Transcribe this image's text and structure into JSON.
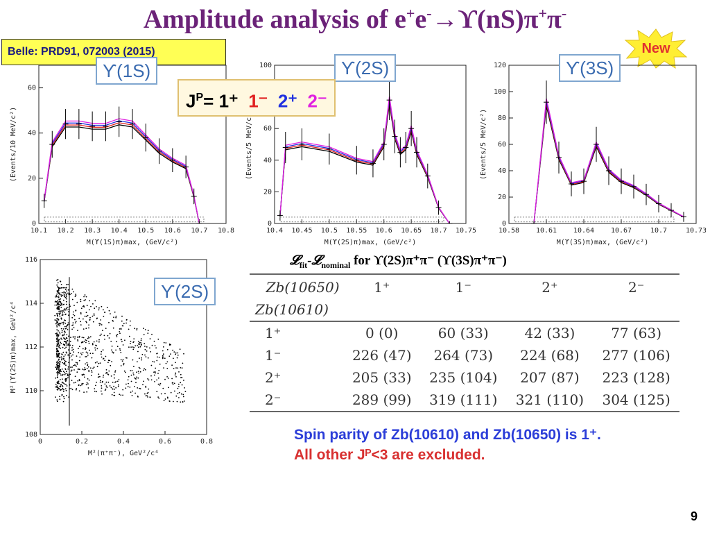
{
  "title": {
    "main": "Amplitude analysis of e",
    "plus": "+",
    "e": "e",
    "minus": "-",
    "arrow": "→ϒ(nS)π",
    "pi_plus": "+",
    "pi": "π",
    "pi_minus": "-"
  },
  "citation": "Belle: PRD91, 072003 (2015)",
  "new_badge": "New",
  "legend_box": {
    "jp_label": "J",
    "jp_sup": "P",
    "equals": "= ",
    "items": [
      {
        "label": "1⁺",
        "color": "#000000"
      },
      {
        "label": "1⁻",
        "color": "#e02020"
      },
      {
        "label": "2⁺",
        "color": "#2030e0"
      },
      {
        "label": "2⁻",
        "color": "#e020e0"
      }
    ]
  },
  "chart_data": [
    {
      "type": "line",
      "channel": "ϒ(1S)",
      "xlabel": "M(ϒ(1S)π)max, (GeV/c²)",
      "ylabel": "(Events/10 MeV/c²)",
      "xlim": [
        10.1,
        10.8
      ],
      "ylim": [
        0,
        70
      ],
      "xticks": [
        "10.1",
        "10.2",
        "10.3",
        "10.4",
        "10.5",
        "10.6",
        "10.7",
        "10.8"
      ],
      "yticks": [
        "0",
        "20",
        "40",
        "60"
      ],
      "x": [
        10.12,
        10.15,
        10.2,
        10.25,
        10.3,
        10.35,
        10.4,
        10.45,
        10.5,
        10.55,
        10.6,
        10.65,
        10.68,
        10.7
      ],
      "y": [
        10,
        35,
        44,
        44,
        43,
        43,
        45,
        44,
        38,
        32,
        28,
        25,
        12,
        0
      ]
    },
    {
      "type": "line",
      "channel": "ϒ(2S)",
      "xlabel": "M(ϒ(2S)π)max, (GeV/c²)",
      "ylabel": "(Events/5 MeV/c²)",
      "xlim": [
        10.4,
        10.75
      ],
      "ylim": [
        0,
        100
      ],
      "xticks": [
        "10.4",
        "10.45",
        "10.5",
        "10.55",
        "10.6",
        "10.65",
        "10.7",
        "10.75"
      ],
      "yticks": [
        "0",
        "20",
        "40",
        "60",
        "80",
        "100"
      ],
      "x": [
        10.41,
        10.42,
        10.45,
        10.5,
        10.55,
        10.58,
        10.6,
        10.61,
        10.62,
        10.63,
        10.64,
        10.65,
        10.66,
        10.68,
        10.7,
        10.72
      ],
      "y": [
        5,
        48,
        50,
        47,
        40,
        38,
        50,
        78,
        55,
        45,
        48,
        60,
        45,
        30,
        10,
        0
      ]
    },
    {
      "type": "line",
      "channel": "ϒ(3S)",
      "xlabel": "M(ϒ(3S)π)max, (GeV/c²)",
      "ylabel": "(Events/5 MeV/c²)",
      "xlim": [
        10.58,
        10.73
      ],
      "ylim": [
        0,
        120
      ],
      "xticks": [
        "10.58",
        "10.61",
        "10.64",
        "10.67",
        "10.7",
        "10.73"
      ],
      "yticks": [
        "0",
        "20",
        "40",
        "60",
        "80",
        "100",
        "120"
      ],
      "x": [
        10.6,
        10.61,
        10.62,
        10.63,
        10.64,
        10.65,
        10.66,
        10.67,
        10.68,
        10.69,
        10.7,
        10.71,
        10.72
      ],
      "y": [
        0,
        92,
        50,
        30,
        32,
        60,
        40,
        32,
        28,
        22,
        15,
        10,
        5
      ]
    },
    {
      "type": "scatter",
      "channel": "ϒ(2S)",
      "xlabel": "M²(π⁺π⁻), GeV²/c⁴",
      "ylabel": "M²(ϒ(2S)π)max, GeV²/c⁴",
      "xlim": [
        0,
        0.8
      ],
      "ylim": [
        108,
        116
      ],
      "xticks": [
        "0",
        "0.2",
        "0.4",
        "0.6",
        "0.8"
      ],
      "yticks": [
        "108",
        "110",
        "112",
        "114",
        "116"
      ],
      "cut_x": 0.14
    }
  ],
  "table": {
    "title_L": "𝓛",
    "title_fit": "fit",
    "title_dash": "-",
    "title_nominal": "nominal",
    "title_rest": " for ϒ(2S)π⁺π⁻ (ϒ(3S)π⁺π⁻)",
    "header_col": "Zb(10650)",
    "header_row": "Zb(10610)",
    "columns": [
      "1⁺",
      "1⁻",
      "2⁺",
      "2⁻"
    ],
    "rows": [
      {
        "label": "1⁺",
        "values": [
          "0 (0)",
          "60 (33)",
          "42 (33)",
          "77 (63)"
        ]
      },
      {
        "label": "1⁻",
        "values": [
          "226 (47)",
          "264 (73)",
          "224 (68)",
          "277 (106)"
        ]
      },
      {
        "label": "2⁺",
        "values": [
          "205 (33)",
          "235 (104)",
          "207 (87)",
          "223 (128)"
        ]
      },
      {
        "label": "2⁻",
        "values": [
          "289 (99)",
          "319 (111)",
          "321 (110)",
          "304 (125)"
        ]
      }
    ]
  },
  "conclusion": {
    "line1": "Spin parity of Zb(10610) and Zb(10650) is 1⁺.",
    "line2": "All other Jᴾ<3 are excluded."
  },
  "page_number": "9"
}
